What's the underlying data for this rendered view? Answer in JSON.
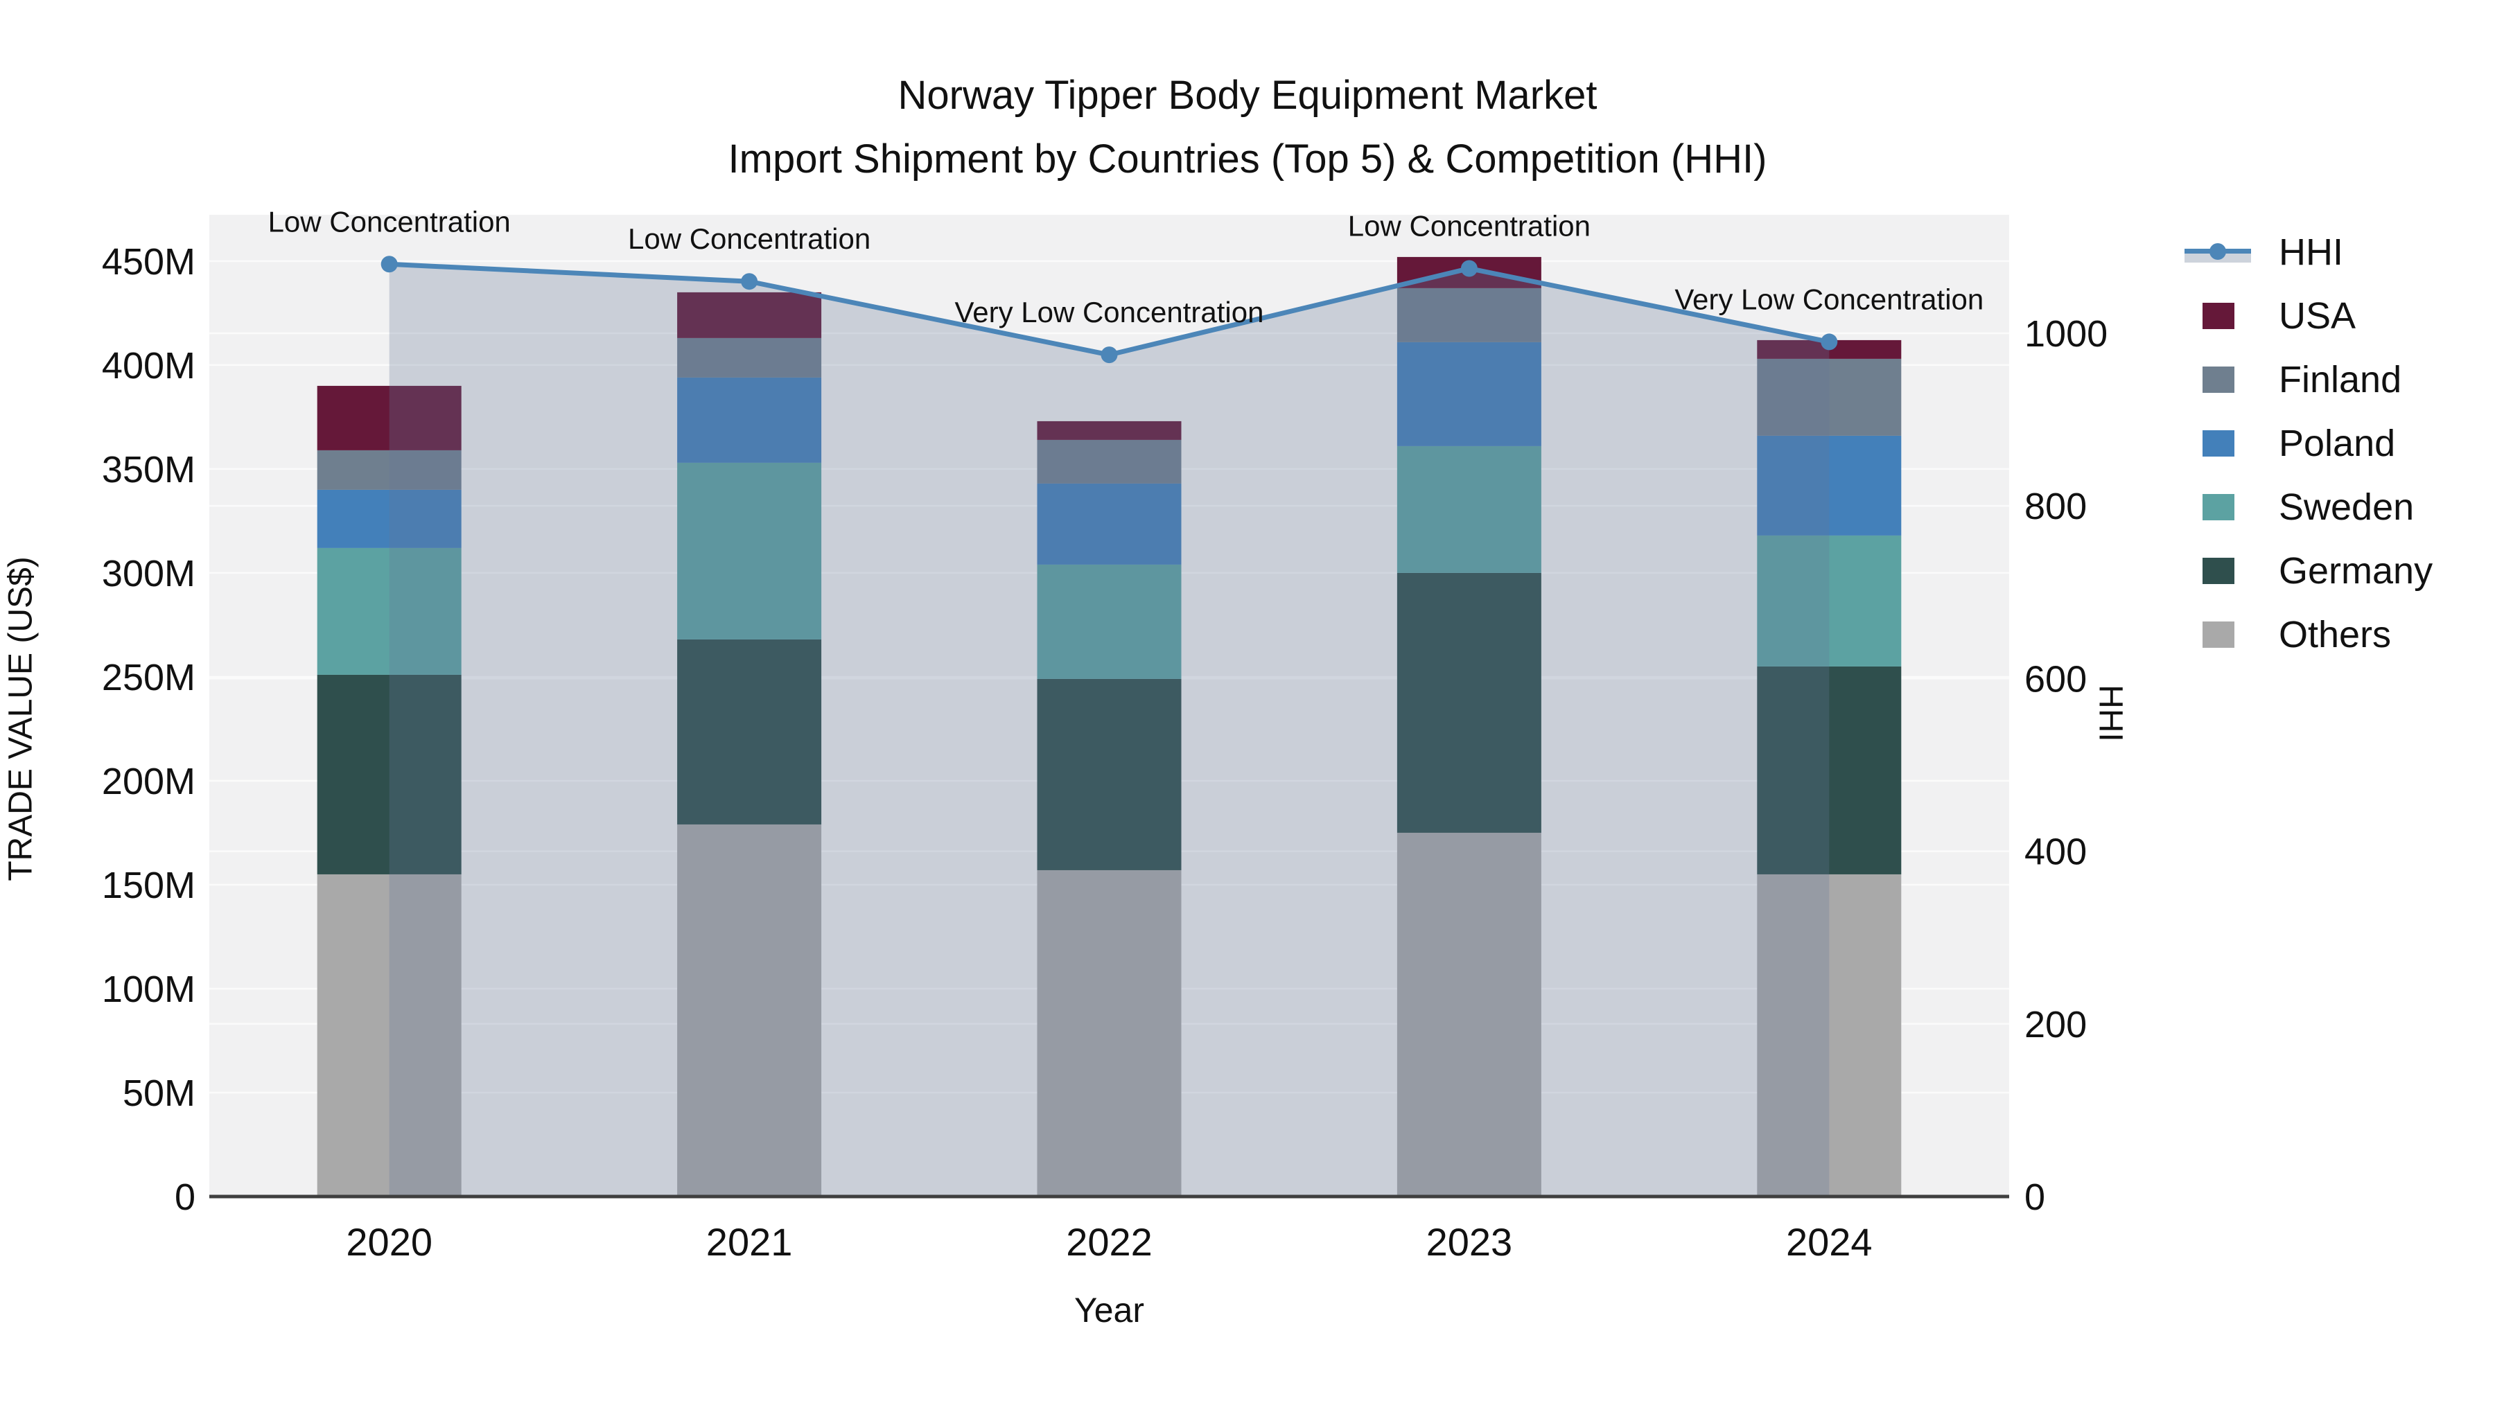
{
  "title": {
    "line1": "Norway Tipper Body Equipment Market",
    "line2": "Import Shipment by Countries (Top 5) & Competition (HHI)"
  },
  "chart_data": {
    "type": "bar",
    "stacked": true,
    "title": "Norway Tipper Body Equipment Market — Import Shipment by Countries (Top 5) & Competition (HHI)",
    "xlabel": "Year",
    "ylabel_left": "TRADE VALUE (US$)",
    "ylabel_right": "HHI",
    "categories": [
      "2020",
      "2021",
      "2022",
      "2023",
      "2024"
    ],
    "series": [
      {
        "name": "Others",
        "color": "#a9a9a9",
        "values": [
          155,
          179,
          157,
          175,
          155
        ]
      },
      {
        "name": "Germany",
        "color": "#2f4f4d",
        "values": [
          96,
          89,
          92,
          125,
          100
        ]
      },
      {
        "name": "Sweden",
        "color": "#5ca2a2",
        "values": [
          61,
          85,
          55,
          61,
          63
        ]
      },
      {
        "name": "Poland",
        "color": "#4380ba",
        "values": [
          28,
          41,
          39,
          50,
          48
        ]
      },
      {
        "name": "Finland",
        "color": "#6f7f8f",
        "values": [
          19,
          19,
          21,
          26,
          37
        ]
      },
      {
        "name": "USA",
        "color": "#651839",
        "values": [
          31,
          22,
          9,
          15,
          9
        ]
      }
    ],
    "bar_totals_M": [
      390,
      435,
      373,
      452,
      412
    ],
    "value_unit": "M US$",
    "line_series": {
      "name": "HHI",
      "axis": "right",
      "color": "#4c86b8",
      "area_fill_color": "rgba(100,120,150,0.28)",
      "values": [
        1080,
        1060,
        975,
        1075,
        990
      ]
    },
    "annotations": [
      {
        "category": "2020",
        "text": "Low Concentration"
      },
      {
        "category": "2021",
        "text": "Low Concentration"
      },
      {
        "category": "2022",
        "text": "Very Low Concentration"
      },
      {
        "category": "2023",
        "text": "Low Concentration"
      },
      {
        "category": "2024",
        "text": "Very Low Concentration"
      }
    ],
    "y_left_axis": {
      "tick_values": [
        0,
        50,
        100,
        150,
        200,
        250,
        300,
        350,
        400,
        450
      ],
      "tick_labels": [
        "0",
        "50M",
        "100M",
        "150M",
        "200M",
        "250M",
        "300M",
        "350M",
        "400M",
        "450M"
      ],
      "range": [
        0,
        472.3
      ]
    },
    "y_right_axis": {
      "tick_values": [
        0,
        200,
        400,
        600,
        800,
        1000
      ],
      "tick_labels": [
        "0",
        "200",
        "400",
        "600",
        "800",
        "1000"
      ],
      "range": [
        0,
        1137.2
      ]
    },
    "legend": [
      {
        "label": "HHI",
        "type": "line",
        "color": "#4c86b8"
      },
      {
        "label": "USA",
        "type": "bar",
        "color": "#651839"
      },
      {
        "label": "Finland",
        "type": "bar",
        "color": "#6f7f8f"
      },
      {
        "label": "Poland",
        "type": "bar",
        "color": "#4380ba"
      },
      {
        "label": "Sweden",
        "type": "bar",
        "color": "#5ca2a2"
      },
      {
        "label": "Germany",
        "type": "bar",
        "color": "#2f4f4d"
      },
      {
        "label": "Others",
        "type": "bar",
        "color": "#a9a9a9"
      }
    ],
    "plot_colors": {
      "plot_background": "#f1f1f2",
      "gridline": "#fbfbfb",
      "axis_line": "#3f3f3f",
      "text": "#111111"
    },
    "legend_position": "right",
    "grid": true
  }
}
